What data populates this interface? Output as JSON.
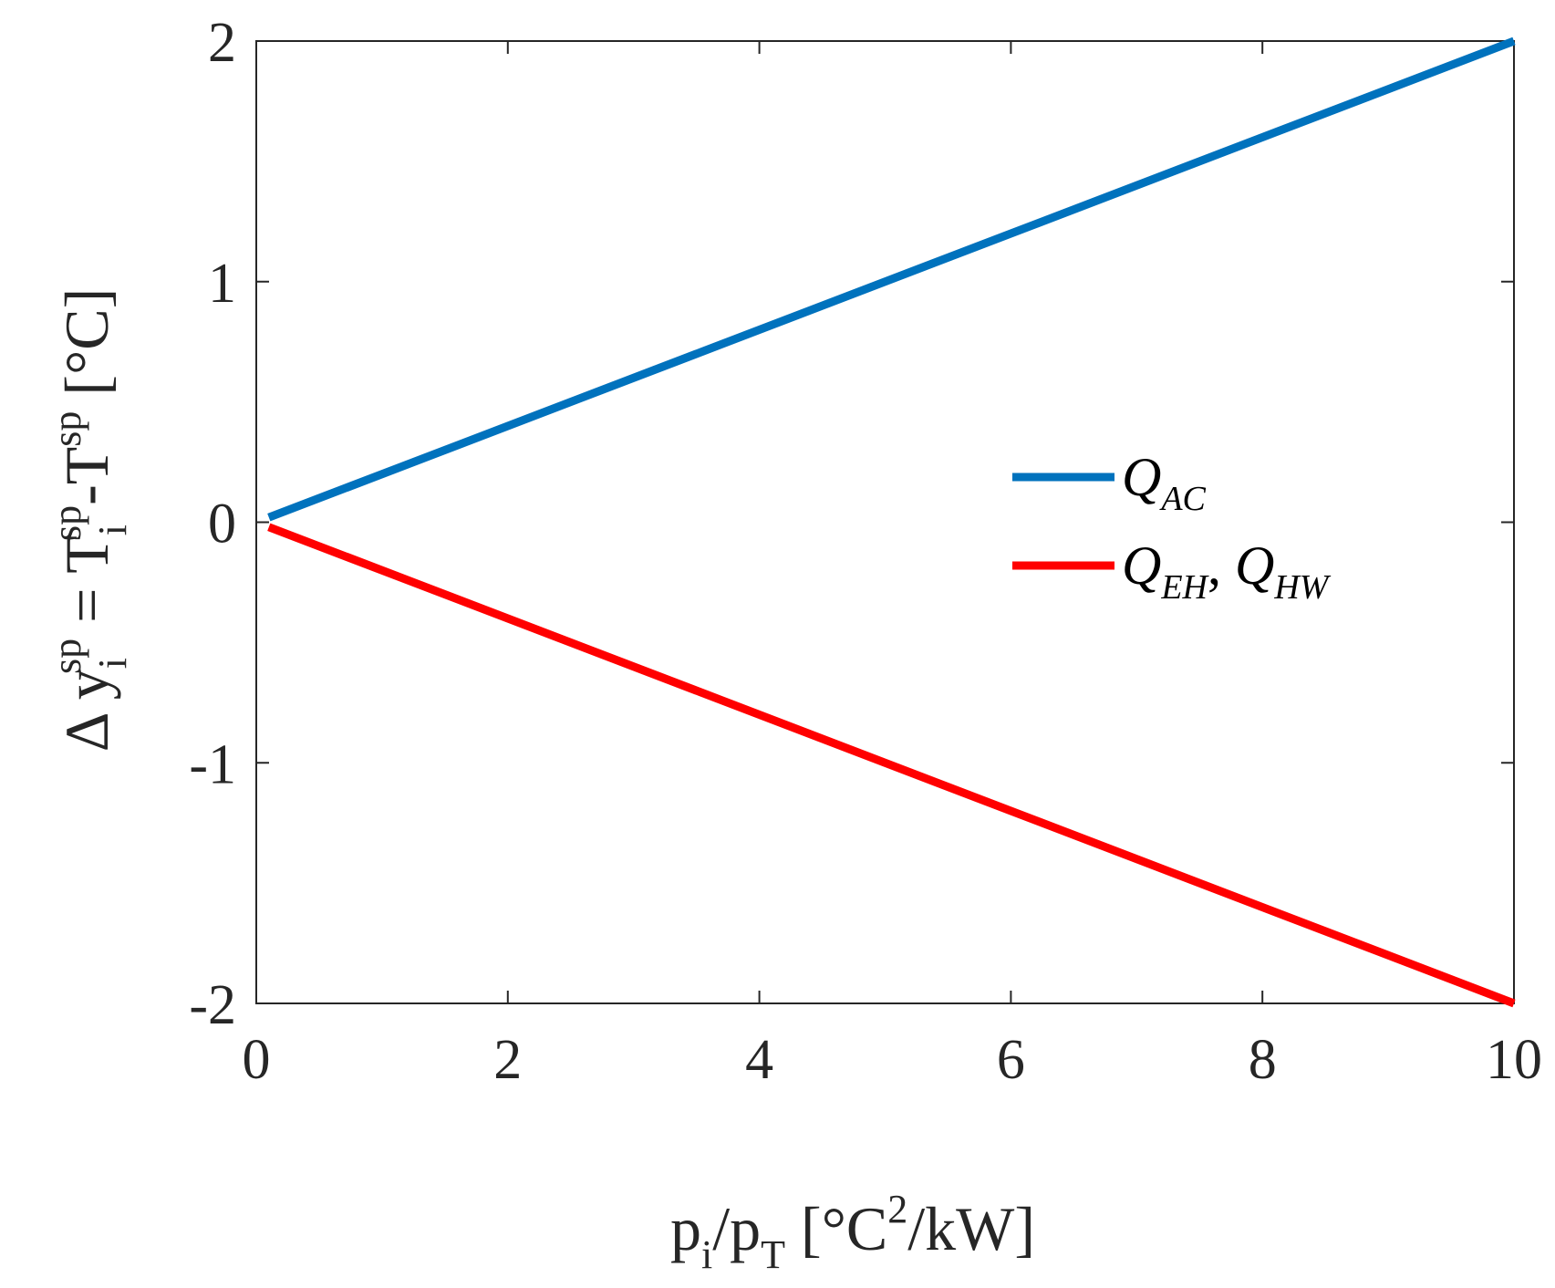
{
  "chart_data": {
    "type": "line",
    "xlabel": {
      "base": "p",
      "sub1": "i",
      "sep": "/p",
      "sub2": "T",
      "unit_start": " [°C",
      "sup": "2",
      "unit_end": "/kW]"
    },
    "ylabel": {
      "delta": "Δ",
      "y": " y",
      "y_sub": "i",
      "y_sup": "sp",
      "eq": " = T",
      "t1_sub": "i",
      "t1_sup": "sp",
      "minus": "-T",
      "t2_sup": "sp",
      "unit": " [°C]"
    },
    "xlim": [
      0,
      10
    ],
    "ylim": [
      -2,
      2
    ],
    "x_ticks": [
      0,
      2,
      4,
      6,
      8,
      10
    ],
    "y_ticks": [
      -2,
      -1,
      0,
      1,
      2
    ],
    "x_tick_labels": [
      "0",
      "2",
      "4",
      "6",
      "8",
      "10"
    ],
    "y_tick_labels": [
      "-2",
      "-1",
      "0",
      "1",
      "2"
    ],
    "grid": false,
    "legend_position": "right-middle",
    "series": [
      {
        "legend": [
          {
            "main": "Q",
            "sub": "AC"
          }
        ],
        "color": "#0072BD",
        "x": [
          0.1,
          10
        ],
        "y": [
          0.02,
          2.0
        ]
      },
      {
        "legend": [
          {
            "main": "Q",
            "sub": "EH"
          },
          {
            "main": "Q",
            "sub": "HW"
          }
        ],
        "color": "#FF0000",
        "x": [
          0.1,
          10
        ],
        "y": [
          -0.02,
          -2.0
        ]
      }
    ]
  }
}
